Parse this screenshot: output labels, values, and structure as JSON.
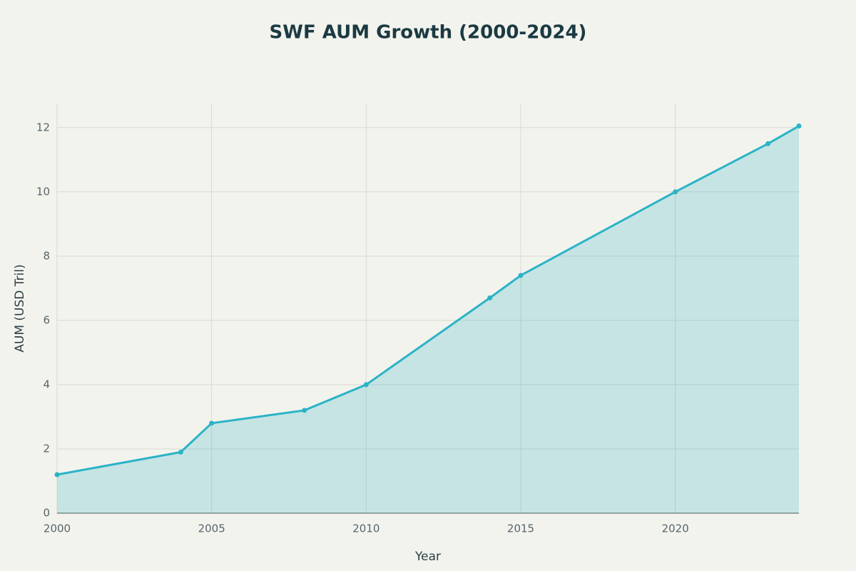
{
  "chart_data": {
    "type": "area",
    "title": "SWF AUM Growth (2000-2024)",
    "x_label": "Year",
    "y_label": "AUM (USD Tril)",
    "x": [
      2000,
      2004,
      2005,
      2008,
      2010,
      2014,
      2015,
      2020,
      2023,
      2024
    ],
    "series": [
      {
        "name": "AUM",
        "color": "#2bb3c6",
        "values": [
          1.2,
          1.9,
          2.8,
          3.2,
          4.0,
          6.7,
          7.4,
          10.0,
          11.5,
          12.05
        ]
      }
    ],
    "xlim": [
      2000,
      2024
    ],
    "xticks": [
      2000,
      2005,
      2010,
      2015,
      2020
    ],
    "ylim": [
      0,
      12.75
    ],
    "yticks": [
      0,
      2,
      4,
      6,
      8,
      10,
      12
    ],
    "grid": true
  }
}
